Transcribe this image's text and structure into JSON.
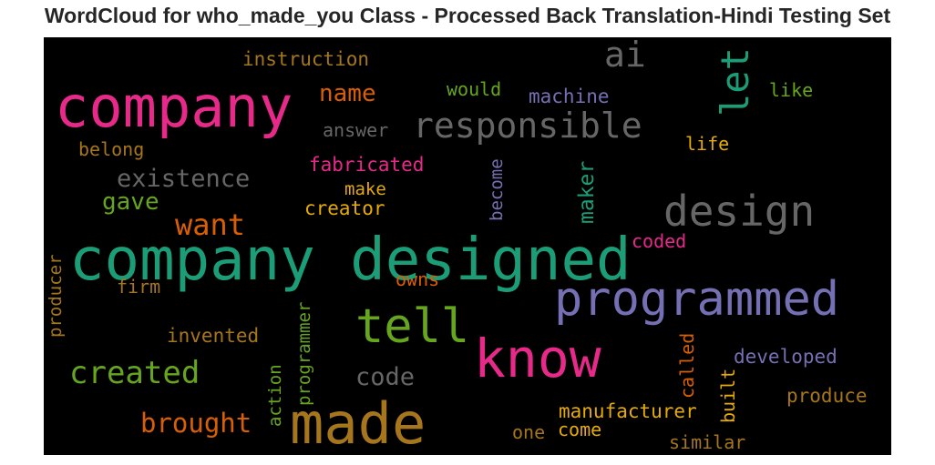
{
  "title": "WordCloud for who_made_you Class - Processed Back Translation-Hindi Testing Set",
  "chart_data": {
    "type": "wordcloud",
    "background": "#000000",
    "colormap": [
      "#1b9e77",
      "#d95f02",
      "#7570b3",
      "#e7298a",
      "#66a61e",
      "#e6ab02",
      "#a6761d",
      "#666666"
    ],
    "words": [
      {
        "text": "company designed",
        "color": "#1b9e77",
        "orientation": "horizontal"
      },
      {
        "text": "company",
        "color": "#e7298a",
        "orientation": "horizontal"
      },
      {
        "text": "made",
        "color": "#a6761d",
        "orientation": "horizontal"
      },
      {
        "text": "know",
        "color": "#e7298a",
        "orientation": "horizontal"
      },
      {
        "text": "programmed",
        "color": "#7570b3",
        "orientation": "horizontal"
      },
      {
        "text": "tell",
        "color": "#66a61e",
        "orientation": "horizontal"
      },
      {
        "text": "design",
        "color": "#666666",
        "orientation": "horizontal"
      },
      {
        "text": "responsible",
        "color": "#666666",
        "orientation": "horizontal"
      },
      {
        "text": "ai",
        "color": "#666666",
        "orientation": "horizontal"
      },
      {
        "text": "let",
        "color": "#1b9e77",
        "orientation": "vertical"
      },
      {
        "text": "created",
        "color": "#66a61e",
        "orientation": "horizontal"
      },
      {
        "text": "want",
        "color": "#d95f02",
        "orientation": "horizontal"
      },
      {
        "text": "brought",
        "color": "#d95f02",
        "orientation": "horizontal"
      },
      {
        "text": "existence",
        "color": "#666666",
        "orientation": "horizontal"
      },
      {
        "text": "code",
        "color": "#666666",
        "orientation": "horizontal"
      },
      {
        "text": "name",
        "color": "#d95f02",
        "orientation": "horizontal"
      },
      {
        "text": "gave",
        "color": "#66a61e",
        "orientation": "horizontal"
      },
      {
        "text": "manufacturer",
        "color": "#e6ab02",
        "orientation": "horizontal"
      },
      {
        "text": "instruction",
        "color": "#a6761d",
        "orientation": "horizontal"
      },
      {
        "text": "fabricated",
        "color": "#e7298a",
        "orientation": "horizontal"
      },
      {
        "text": "creator",
        "color": "#e6ab02",
        "orientation": "horizontal"
      },
      {
        "text": "machine",
        "color": "#7570b3",
        "orientation": "horizontal"
      },
      {
        "text": "developed",
        "color": "#7570b3",
        "orientation": "horizontal"
      },
      {
        "text": "produce",
        "color": "#a6761d",
        "orientation": "horizontal"
      },
      {
        "text": "invented",
        "color": "#a6761d",
        "orientation": "horizontal"
      },
      {
        "text": "maker",
        "color": "#1b9e77",
        "orientation": "vertical"
      },
      {
        "text": "programmer",
        "color": "#66a61e",
        "orientation": "vertical"
      },
      {
        "text": "producer",
        "color": "#a6761d",
        "orientation": "vertical"
      },
      {
        "text": "answer",
        "color": "#666666",
        "orientation": "horizontal"
      },
      {
        "text": "belong",
        "color": "#a6761d",
        "orientation": "horizontal"
      },
      {
        "text": "would",
        "color": "#66a61e",
        "orientation": "horizontal"
      },
      {
        "text": "like",
        "color": "#66a61e",
        "orientation": "horizontal"
      },
      {
        "text": "coded",
        "color": "#e7298a",
        "orientation": "horizontal"
      },
      {
        "text": "life",
        "color": "#e6ab02",
        "orientation": "horizontal"
      },
      {
        "text": "make",
        "color": "#e6ab02",
        "orientation": "horizontal"
      },
      {
        "text": "become",
        "color": "#7570b3",
        "orientation": "vertical"
      },
      {
        "text": "called",
        "color": "#d95f02",
        "orientation": "vertical"
      },
      {
        "text": "built",
        "color": "#e6ab02",
        "orientation": "vertical"
      },
      {
        "text": "action",
        "color": "#66a61e",
        "orientation": "vertical"
      },
      {
        "text": "firm",
        "color": "#a6761d",
        "orientation": "horizontal"
      },
      {
        "text": "owns",
        "color": "#d95f02",
        "orientation": "horizontal"
      },
      {
        "text": "come",
        "color": "#e6ab02",
        "orientation": "horizontal"
      },
      {
        "text": "one",
        "color": "#a6761d",
        "orientation": "horizontal"
      },
      {
        "text": "similar",
        "color": "#a6761d",
        "orientation": "horizontal"
      }
    ]
  }
}
